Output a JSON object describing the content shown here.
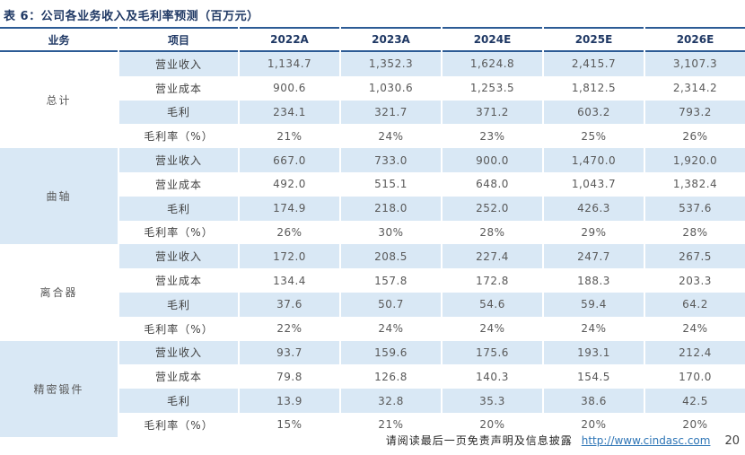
{
  "title": "表 6：公司各业务收入及毛利率预测（百万元）",
  "colors": {
    "accent_navy": "#1f3864",
    "rule_blue": "#2c5b95",
    "stripe_blue": "#d9e8f5",
    "link_blue": "#2e75b6",
    "value_gray": "#595959"
  },
  "table": {
    "col_headers": [
      "业务",
      "项目",
      "2022A",
      "2023A",
      "2024E",
      "2025E",
      "2026E"
    ],
    "groups": [
      {
        "name": "总计",
        "rows": [
          {
            "label": "营业收入",
            "values": [
              "1,134.7",
              "1,352.3",
              "1,624.8",
              "2,415.7",
              "3,107.3"
            ]
          },
          {
            "label": "营业成本",
            "values": [
              "900.6",
              "1,030.6",
              "1,253.5",
              "1,812.5",
              "2,314.2"
            ]
          },
          {
            "label": "毛利",
            "values": [
              "234.1",
              "321.7",
              "371.2",
              "603.2",
              "793.2"
            ]
          },
          {
            "label": "毛利率（%）",
            "values": [
              "21%",
              "24%",
              "23%",
              "25%",
              "26%"
            ]
          }
        ]
      },
      {
        "name": "曲轴",
        "rows": [
          {
            "label": "营业收入",
            "values": [
              "667.0",
              "733.0",
              "900.0",
              "1,470.0",
              "1,920.0"
            ]
          },
          {
            "label": "营业成本",
            "values": [
              "492.0",
              "515.1",
              "648.0",
              "1,043.7",
              "1,382.4"
            ]
          },
          {
            "label": "毛利",
            "values": [
              "174.9",
              "218.0",
              "252.0",
              "426.3",
              "537.6"
            ]
          },
          {
            "label": "毛利率（%）",
            "values": [
              "26%",
              "30%",
              "28%",
              "29%",
              "28%"
            ]
          }
        ]
      },
      {
        "name": "离合器",
        "rows": [
          {
            "label": "营业收入",
            "values": [
              "172.0",
              "208.5",
              "227.4",
              "247.7",
              "267.5"
            ]
          },
          {
            "label": "营业成本",
            "values": [
              "134.4",
              "157.8",
              "172.8",
              "188.3",
              "203.3"
            ]
          },
          {
            "label": "毛利",
            "values": [
              "37.6",
              "50.7",
              "54.6",
              "59.4",
              "64.2"
            ]
          },
          {
            "label": "毛利率（%）",
            "values": [
              "22%",
              "24%",
              "24%",
              "24%",
              "24%"
            ]
          }
        ]
      },
      {
        "name": "精密锻件",
        "rows": [
          {
            "label": "营业收入",
            "values": [
              "93.7",
              "159.6",
              "175.6",
              "193.1",
              "212.4"
            ]
          },
          {
            "label": "营业成本",
            "values": [
              "79.8",
              "126.8",
              "140.3",
              "154.5",
              "170.0"
            ]
          },
          {
            "label": "毛利",
            "values": [
              "13.9",
              "32.8",
              "35.3",
              "38.6",
              "42.5"
            ]
          },
          {
            "label": "毛利率（%）",
            "values": [
              "15%",
              "21%",
              "20%",
              "20%",
              "20%"
            ]
          }
        ]
      }
    ]
  },
  "footer": {
    "disclaimer": "请阅读最后一页免责声明及信息披露",
    "link": "http://www.cindasc.com",
    "page_number": "20"
  }
}
